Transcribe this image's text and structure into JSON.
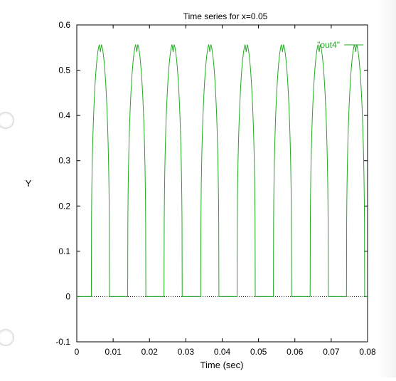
{
  "chart_data": {
    "type": "line",
    "title": "Time series for x=0.05",
    "xlabel": "Time (sec)",
    "ylabel": "Y",
    "xlim": [
      0,
      0.08
    ],
    "ylim": [
      -0.1,
      0.6
    ],
    "xticks": [
      "0",
      "0.01",
      "0.02",
      "0.03",
      "0.04",
      "0.05",
      "0.06",
      "0.07",
      "0.08"
    ],
    "yticks": [
      "-0.1",
      "0",
      "0.1",
      "0.2",
      "0.3",
      "0.4",
      "0.5",
      "0.6"
    ],
    "grid": false,
    "legend": "top-right",
    "series": [
      {
        "name": "\"out4\"",
        "color": "#22aa22",
        "pulse_peak": 0.56,
        "pulse_peaks_x": [
          0.0065,
          0.0165,
          0.0265,
          0.0366,
          0.0466,
          0.0566,
          0.0667,
          0.0767
        ],
        "pulse_width": 0.005
      }
    ],
    "zero_line": {
      "y": 0,
      "style": "dotted",
      "color": "#000000"
    }
  }
}
